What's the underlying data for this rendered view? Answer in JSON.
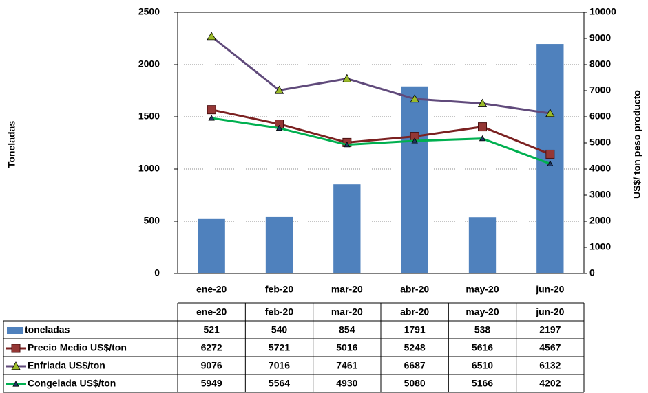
{
  "chart_data": {
    "type": "bar-line",
    "ylabel": "Toneladas",
    "y2label": "US$/ ton peso producto",
    "categories": [
      "ene-20",
      "feb-20",
      "mar-20",
      "abr-20",
      "may-20",
      "jun-20"
    ],
    "series": [
      {
        "name": "toneladas",
        "type": "bar",
        "color": "#4f81bd",
        "values": [
          521,
          540,
          854,
          1791,
          538,
          2197
        ]
      },
      {
        "name": "Precio Medio US$/ton",
        "type": "line",
        "axis": "y2",
        "color": "#7b2121",
        "marker": "square",
        "marker_color": "#953735",
        "values": [
          6272,
          5721,
          5016,
          5248,
          5616,
          4567
        ]
      },
      {
        "name": "Enfriada US$/ton",
        "type": "line",
        "axis": "y2",
        "color": "#604a7b",
        "marker": "triangle",
        "marker_color": "#9bbb29",
        "values": [
          9076,
          7016,
          7461,
          6687,
          6510,
          6132
        ]
      },
      {
        "name": "Congelada US$/ton",
        "type": "line",
        "axis": "y2",
        "color": "#00b050",
        "marker": "small-triangle",
        "marker_color": "#1f3864",
        "values": [
          5949,
          5564,
          4930,
          5080,
          5166,
          4202
        ]
      }
    ],
    "ylim": [
      0,
      2500
    ],
    "yticks": [
      0,
      500,
      1000,
      1500,
      2000,
      2500
    ],
    "y2lim": [
      0,
      10000
    ],
    "y2ticks": [
      0,
      1000,
      2000,
      3000,
      4000,
      5000,
      6000,
      7000,
      8000,
      9000,
      10000
    ],
    "grid": true
  }
}
